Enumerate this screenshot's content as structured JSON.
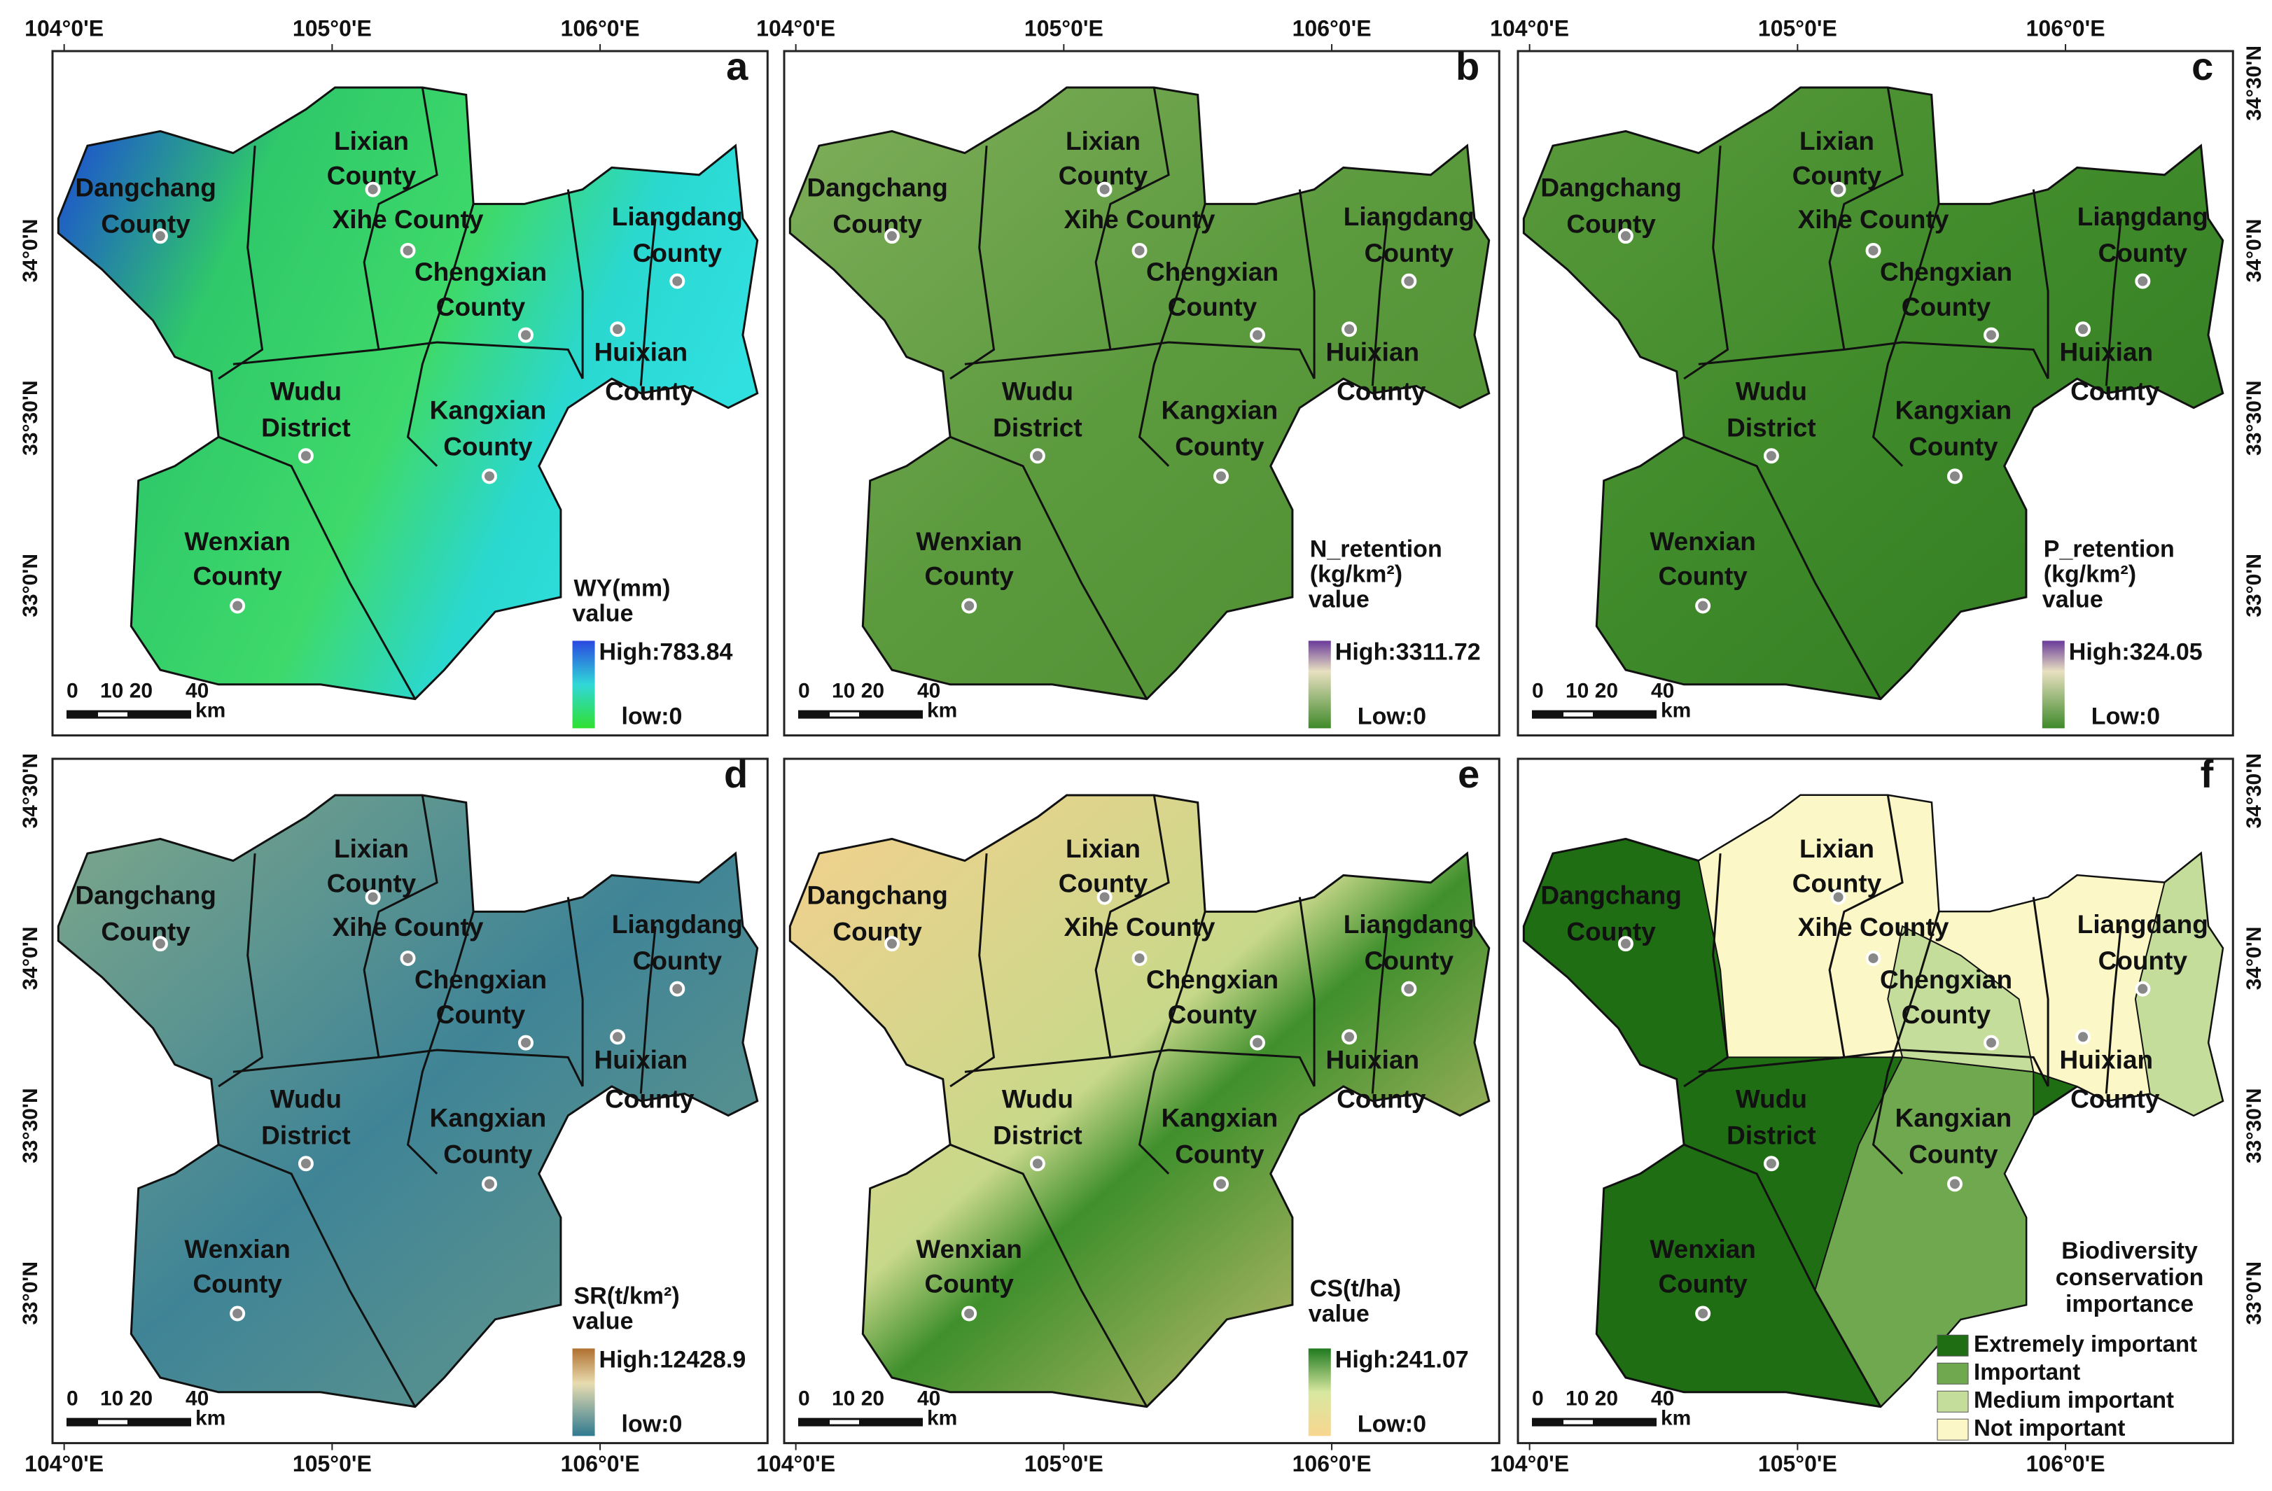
{
  "lon_labels": [
    "104°0'E",
    "105°0'E",
    "106°0'E"
  ],
  "lat_labels": [
    "34°30'N",
    "34°0'N",
    "33°30'N",
    "33°0'N"
  ],
  "counties": [
    {
      "lines": [
        "Dangchang",
        "County"
      ]
    },
    {
      "lines": [
        "Lixian",
        "County"
      ]
    },
    {
      "lines": [
        "Xihe County"
      ]
    },
    {
      "lines": [
        "Liangdang",
        "County"
      ]
    },
    {
      "lines": [
        "Chengxian",
        "County"
      ]
    },
    {
      "lines": [
        "Huixian",
        "County"
      ]
    },
    {
      "lines": [
        "Wudu",
        "District"
      ]
    },
    {
      "lines": [
        "Kangxian",
        "County"
      ]
    },
    {
      "lines": [
        "Wenxian",
        "County"
      ]
    }
  ],
  "scale_bar": {
    "labels": [
      "0",
      "10 20",
      "40"
    ],
    "unit": "km"
  },
  "panels": [
    {
      "letter": "a",
      "legend_title": [
        "WY(mm)",
        "value"
      ],
      "high": "High:783.84",
      "low": "low:0"
    },
    {
      "letter": "b",
      "legend_title": [
        "N_retention",
        "(kg/km²)",
        "value"
      ],
      "high": "High:3311.72",
      "low": "Low:0"
    },
    {
      "letter": "c",
      "legend_title": [
        "P_retention",
        "(kg/km²)",
        "value"
      ],
      "high": "High:324.05",
      "low": "Low:0"
    },
    {
      "letter": "d",
      "legend_title": [
        "SR(t/km²)",
        "value"
      ],
      "high": "High:12428.9",
      "low": "low:0"
    },
    {
      "letter": "e",
      "legend_title": [
        "CS(t/ha)",
        "value"
      ],
      "high": "High:241.07",
      "low": "Low:0"
    },
    {
      "letter": "f",
      "legend_title": [
        "Biodiversity",
        "conservation",
        "importance"
      ],
      "classes": [
        {
          "label": "Extremely important",
          "color": "#1f6e14"
        },
        {
          "label": "Important",
          "color": "#6fa84f"
        },
        {
          "label": "Medium important",
          "color": "#c5dd9a"
        },
        {
          "label": "Not important",
          "color": "#fbf7c6"
        }
      ]
    }
  ]
}
